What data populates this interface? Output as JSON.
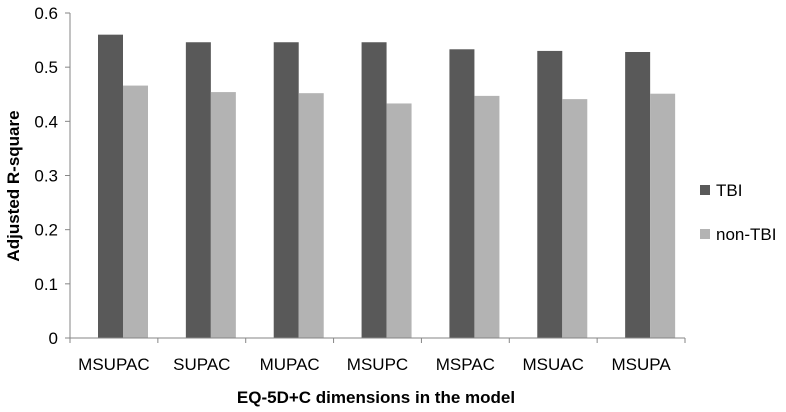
{
  "chart_data": {
    "type": "bar",
    "title": "",
    "xlabel": "EQ-5D+C dimensions in the model",
    "ylabel": "Adjusted R-square",
    "categories": [
      "MSUPAC",
      "SUPAC",
      "MUPAC",
      "MSUPC",
      "MSPAC",
      "MSUAC",
      "MSUPA"
    ],
    "series": [
      {
        "name": "TBI",
        "color": "#595959",
        "values": [
          0.56,
          0.546,
          0.546,
          0.546,
          0.533,
          0.53,
          0.528
        ]
      },
      {
        "name": "non-TBI",
        "color": "#b3b3b3",
        "values": [
          0.466,
          0.454,
          0.452,
          0.433,
          0.447,
          0.441,
          0.451
        ]
      }
    ],
    "ylim": [
      0,
      0.6
    ],
    "yticks": [
      "0",
      "0.1",
      "0.2",
      "0.3",
      "0.4",
      "0.5",
      "0.6"
    ],
    "grid": false,
    "legend_position": "right"
  }
}
